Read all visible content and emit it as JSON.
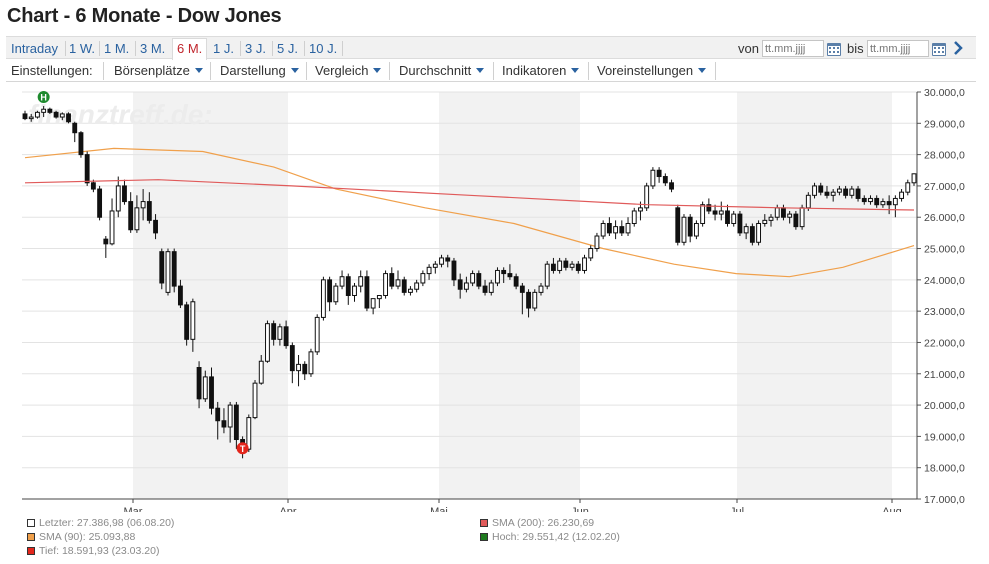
{
  "page": {
    "title": "Chart - 6 Monate - Dow Jones"
  },
  "ranges": [
    {
      "label": "Intraday",
      "active": false
    },
    {
      "label": "1 W.",
      "active": false
    },
    {
      "label": "1 M.",
      "active": false
    },
    {
      "label": "3 M.",
      "active": false
    },
    {
      "label": "6 M.",
      "active": true
    },
    {
      "label": "1 J.",
      "active": false
    },
    {
      "label": "3 J.",
      "active": false
    },
    {
      "label": "5 J.",
      "active": false
    },
    {
      "label": "10 J.",
      "active": false
    }
  ],
  "date_filter": {
    "from_label": "von",
    "to_label": "bis",
    "from_placeholder": "tt.mm.jjjj",
    "to_placeholder": "tt.mm.jjjj"
  },
  "settings": {
    "label": "Einstellungen:",
    "menus": [
      "Börsenplätze",
      "Darstellung",
      "Vergleich",
      "Durchschnitt",
      "Indikatoren",
      "Voreinstellungen"
    ]
  },
  "chart_data": {
    "type": "candlestick",
    "watermark": "finanztreff.de:",
    "ylim": [
      17000,
      30000
    ],
    "yticks": [
      "30.000,0",
      "29.000,0",
      "28.000,0",
      "27.000,0",
      "26.000,0",
      "25.000,0",
      "24.000,0",
      "23.000,0",
      "22.000,0",
      "21.000,0",
      "20.000,0",
      "19.000,0",
      "18.000,0",
      "17.000,0"
    ],
    "xticks": [
      "Mar",
      "Apr",
      "Mai",
      "Jun",
      "Jul",
      "Aug"
    ],
    "markers": {
      "high": "H",
      "low": "T"
    },
    "candles": [
      [
        29300,
        29400,
        29100,
        29150
      ],
      [
        29150,
        29300,
        29050,
        29200
      ],
      [
        29200,
        29400,
        29150,
        29350
      ],
      [
        29350,
        29551,
        29200,
        29450
      ],
      [
        29450,
        29500,
        29300,
        29350
      ],
      [
        29350,
        29400,
        29150,
        29200
      ],
      [
        29200,
        29350,
        29100,
        29300
      ],
      [
        29300,
        29350,
        29000,
        29050
      ],
      [
        29000,
        29050,
        28400,
        28700
      ],
      [
        28700,
        28750,
        27900,
        28000
      ],
      [
        28000,
        28100,
        27000,
        27100
      ],
      [
        27100,
        27200,
        26800,
        26900
      ],
      [
        26900,
        27000,
        25900,
        26000
      ],
      [
        25300,
        25400,
        24700,
        25150
      ],
      [
        25150,
        26600,
        25100,
        26200
      ],
      [
        26200,
        27300,
        26000,
        27000
      ],
      [
        27000,
        27200,
        26400,
        26500
      ],
      [
        26500,
        26800,
        25500,
        25600
      ],
      [
        25600,
        26700,
        25500,
        26300
      ],
      [
        26300,
        26900,
        25900,
        26500
      ],
      [
        26500,
        26800,
        25800,
        25900
      ],
      [
        25900,
        26100,
        25300,
        25500
      ],
      [
        24900,
        25000,
        23700,
        23900
      ],
      [
        23600,
        25000,
        23500,
        24900
      ],
      [
        24900,
        25000,
        23600,
        23800
      ],
      [
        23800,
        24000,
        23100,
        23200
      ],
      [
        23200,
        23300,
        21900,
        22100
      ],
      [
        22100,
        23400,
        21700,
        23300
      ],
      [
        21200,
        21400,
        19900,
        20200
      ],
      [
        20200,
        21100,
        20100,
        20900
      ],
      [
        20900,
        21200,
        19700,
        19900
      ],
      [
        19900,
        20100,
        18900,
        19500
      ],
      [
        19500,
        19900,
        19100,
        19300
      ],
      [
        19300,
        20100,
        18800,
        20000
      ],
      [
        20000,
        20100,
        18600,
        18900
      ],
      [
        18900,
        19000,
        18300,
        18591
      ],
      [
        18591,
        19700,
        18500,
        19600
      ],
      [
        19600,
        20800,
        19550,
        20700
      ],
      [
        20700,
        21600,
        20650,
        21400
      ],
      [
        21400,
        22700,
        21350,
        22600
      ],
      [
        22600,
        22700,
        21900,
        22100
      ],
      [
        22100,
        22600,
        21900,
        22500
      ],
      [
        22500,
        22700,
        21800,
        21900
      ],
      [
        21900,
        22000,
        20700,
        21100
      ],
      [
        21100,
        21600,
        20600,
        21300
      ],
      [
        21300,
        21400,
        20800,
        21000
      ],
      [
        21000,
        21800,
        20900,
        21700
      ],
      [
        21700,
        22900,
        21600,
        22800
      ],
      [
        22800,
        24100,
        22700,
        24000
      ],
      [
        24000,
        24100,
        23000,
        23300
      ],
      [
        23300,
        23900,
        23200,
        23800
      ],
      [
        23800,
        24300,
        23700,
        24100
      ],
      [
        24100,
        24200,
        23200,
        23500
      ],
      [
        23500,
        23900,
        23300,
        23800
      ],
      [
        23800,
        24300,
        23600,
        24100
      ],
      [
        24100,
        24300,
        23000,
        23100
      ],
      [
        23100,
        23300,
        22900,
        23400
      ],
      [
        23400,
        23500,
        23100,
        23500
      ],
      [
        23500,
        24300,
        23400,
        24200
      ],
      [
        24200,
        24400,
        23700,
        23800
      ],
      [
        23800,
        24300,
        23700,
        24000
      ],
      [
        24000,
        24100,
        23500,
        23600
      ],
      [
        23600,
        23800,
        23500,
        23700
      ],
      [
        23700,
        24000,
        23600,
        23900
      ],
      [
        23900,
        24300,
        23800,
        24200
      ],
      [
        24200,
        24500,
        24000,
        24400
      ],
      [
        24400,
        24600,
        24200,
        24500
      ],
      [
        24500,
        24800,
        24400,
        24700
      ],
      [
        24700,
        24800,
        24400,
        24600
      ],
      [
        24600,
        24700,
        23800,
        24000
      ],
      [
        24000,
        24200,
        23400,
        23700
      ],
      [
        23700,
        24100,
        23600,
        23900
      ],
      [
        23900,
        24300,
        23800,
        24200
      ],
      [
        24200,
        24300,
        23700,
        23800
      ],
      [
        23800,
        24000,
        23500,
        23600
      ],
      [
        23600,
        24000,
        23500,
        23900
      ],
      [
        23900,
        24400,
        23800,
        24300
      ],
      [
        24300,
        24400,
        23900,
        24200
      ],
      [
        24200,
        24500,
        24000,
        24100
      ],
      [
        24100,
        24200,
        23700,
        23800
      ],
      [
        23800,
        23900,
        22900,
        23600
      ],
      [
        23600,
        23700,
        22800,
        23100
      ],
      [
        23100,
        23700,
        23000,
        23600
      ],
      [
        23600,
        23900,
        23500,
        23800
      ],
      [
        23800,
        24600,
        23700,
        24500
      ],
      [
        24500,
        24700,
        24200,
        24300
      ],
      [
        24300,
        24700,
        24200,
        24600
      ],
      [
        24600,
        24700,
        24300,
        24400
      ],
      [
        24400,
        24600,
        24300,
        24500
      ],
      [
        24500,
        24600,
        24200,
        24300
      ],
      [
        24300,
        24800,
        24200,
        24700
      ],
      [
        24700,
        25100,
        24600,
        25000
      ],
      [
        25000,
        25500,
        24900,
        25400
      ],
      [
        25400,
        25900,
        25300,
        25800
      ],
      [
        25800,
        26000,
        25400,
        25500
      ],
      [
        25500,
        25900,
        25300,
        25700
      ],
      [
        25700,
        25900,
        25400,
        25500
      ],
      [
        25500,
        26000,
        25400,
        25800
      ],
      [
        25800,
        26300,
        25700,
        26200
      ],
      [
        26200,
        26500,
        25900,
        26300
      ],
      [
        26300,
        27100,
        26200,
        27000
      ],
      [
        27000,
        27600,
        26900,
        27500
      ],
      [
        27500,
        27600,
        27100,
        27300
      ],
      [
        27300,
        27400,
        27000,
        27100
      ],
      [
        27100,
        27200,
        26800,
        26900
      ],
      [
        26300,
        26400,
        25100,
        25200
      ],
      [
        25200,
        26100,
        25100,
        26000
      ],
      [
        26000,
        26100,
        25200,
        25400
      ],
      [
        25400,
        25900,
        25300,
        25800
      ],
      [
        25800,
        26500,
        25700,
        26400
      ],
      [
        26400,
        26600,
        26100,
        26200
      ],
      [
        26200,
        26400,
        25900,
        26100
      ],
      [
        26100,
        26500,
        25900,
        26200
      ],
      [
        26200,
        26400,
        25700,
        25800
      ],
      [
        25800,
        26200,
        25700,
        26100
      ],
      [
        26100,
        26200,
        25400,
        25500
      ],
      [
        25500,
        25800,
        25300,
        25700
      ],
      [
        25700,
        25800,
        25100,
        25200
      ],
      [
        25200,
        25900,
        25100,
        25800
      ],
      [
        25800,
        26100,
        25700,
        25900
      ],
      [
        25900,
        26100,
        25700,
        26000
      ],
      [
        26000,
        26400,
        25900,
        26300
      ],
      [
        26300,
        26400,
        25900,
        26000
      ],
      [
        26000,
        26200,
        25800,
        26100
      ],
      [
        26100,
        26200,
        25600,
        25700
      ],
      [
        25700,
        26400,
        25600,
        26300
      ],
      [
        26300,
        26800,
        26200,
        26700
      ],
      [
        26700,
        27100,
        26600,
        27000
      ],
      [
        27000,
        27100,
        26700,
        26800
      ],
      [
        26800,
        27000,
        26600,
        26700
      ],
      [
        26700,
        26900,
        26500,
        26800
      ],
      [
        26800,
        27000,
        26700,
        26900
      ],
      [
        26900,
        27000,
        26600,
        26700
      ],
      [
        26700,
        27000,
        26600,
        26900
      ],
      [
        26900,
        27000,
        26500,
        26600
      ],
      [
        26600,
        26700,
        26400,
        26500
      ],
      [
        26500,
        26700,
        26400,
        26600
      ],
      [
        26600,
        26700,
        26300,
        26400
      ],
      [
        26400,
        26600,
        26300,
        26500
      ],
      [
        26500,
        26700,
        26100,
        26400
      ],
      [
        26400,
        26700,
        26000,
        26600
      ],
      [
        26600,
        26900,
        26500,
        26800
      ],
      [
        26800,
        27200,
        26700,
        27100
      ],
      [
        27100,
        27400,
        27000,
        27387
      ]
    ],
    "sma200": [
      [
        0,
        27100
      ],
      [
        0.15,
        27200
      ],
      [
        0.3,
        27000
      ],
      [
        0.5,
        26700
      ],
      [
        0.7,
        26400
      ],
      [
        0.85,
        26300
      ],
      [
        1,
        26230
      ]
    ],
    "sma90": [
      [
        0,
        27900
      ],
      [
        0.1,
        28200
      ],
      [
        0.2,
        28100
      ],
      [
        0.28,
        27600
      ],
      [
        0.35,
        26900
      ],
      [
        0.45,
        26300
      ],
      [
        0.55,
        25800
      ],
      [
        0.65,
        25000
      ],
      [
        0.73,
        24500
      ],
      [
        0.8,
        24200
      ],
      [
        0.86,
        24100
      ],
      [
        0.92,
        24400
      ],
      [
        1,
        25094
      ]
    ],
    "legend": [
      {
        "label": "Letzter: 27.386,98 (06.08.20)",
        "color": "#ffffff"
      },
      {
        "label": "SMA (90): 25.093,88",
        "color": "#f0a04b"
      },
      {
        "label": "Tief: 18.591,93 (23.03.20)",
        "color": "#e3261c"
      },
      {
        "label": "SMA (200): 26.230,69",
        "color": "#e05a5a"
      },
      {
        "label": "Hoch: 29.551,42 (12.02.20)",
        "color": "#1e7a1e"
      }
    ]
  }
}
